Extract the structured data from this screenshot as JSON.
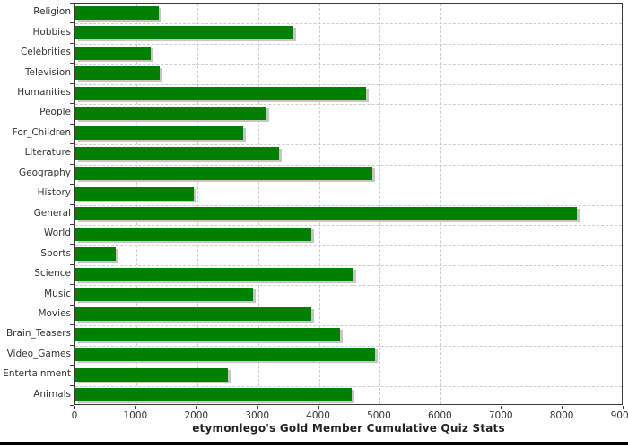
{
  "title": "etymonlego's Gold Member Cumulative Quiz Stats",
  "colors": {
    "bar": "#008000",
    "bar_shadow": "#c6c6c6",
    "gridline": "#c9ccd1",
    "axis_frame": "#3c3c3c",
    "label_text": "#333333",
    "title_text": "#222222",
    "background": "#ffffff",
    "bottom_border": "#000000"
  },
  "chart_data": {
    "type": "bar",
    "orientation": "horizontal",
    "title": "etymonlego's Gold Member Cumulative Quiz Stats",
    "xlabel": "",
    "ylabel": "",
    "xlim": [
      0,
      9000
    ],
    "x_ticks": [
      0,
      1000,
      2000,
      3000,
      4000,
      5000,
      6000,
      7000,
      8000,
      9000
    ],
    "grid": true,
    "legend": "none",
    "categories": [
      "Religion",
      "Hobbies",
      "Celebrities",
      "Television",
      "Humanities",
      "People",
      "For_Children",
      "Literature",
      "Geography",
      "History",
      "General",
      "World",
      "Sports",
      "Science",
      "Music",
      "Movies",
      "Brain_Teasers",
      "Video_Games",
      "Entertainment",
      "Animals"
    ],
    "values": [
      1370,
      3580,
      1240,
      1390,
      4770,
      3140,
      2750,
      3340,
      4870,
      1940,
      8240,
      3870,
      660,
      4570,
      2920,
      3880,
      4340,
      4920,
      2510,
      4540
    ]
  }
}
